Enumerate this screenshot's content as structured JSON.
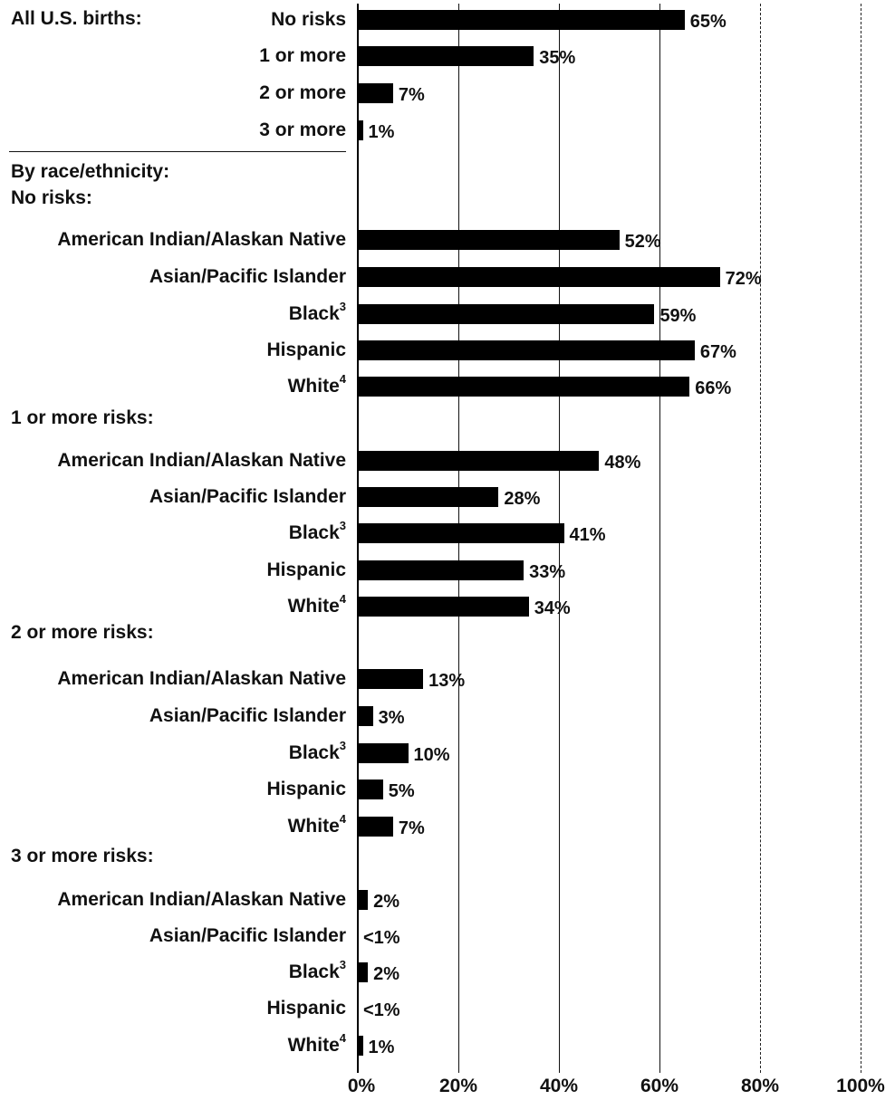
{
  "chart_data": {
    "type": "bar",
    "orientation": "horizontal",
    "xlim": [
      0,
      100
    ],
    "x_ticks": [
      "0%",
      "20%",
      "40%",
      "60%",
      "80%",
      "100%"
    ],
    "grid": true,
    "groups": [
      {
        "header": "All U.S. births:",
        "rows": [
          {
            "label": "No risks",
            "sup": "",
            "value": 65,
            "display": "65%"
          },
          {
            "label": "1 or more",
            "sup": "",
            "value": 35,
            "display": "35%"
          },
          {
            "label": "2 or more",
            "sup": "",
            "value": 7,
            "display": "7%"
          },
          {
            "label": "3 or more",
            "sup": "",
            "value": 1,
            "display": "1%"
          }
        ]
      },
      {
        "header": "By race/ethnicity:",
        "subheader": "No risks:",
        "rows": [
          {
            "label": "American Indian/Alaskan Native",
            "sup": "",
            "value": 52,
            "display": "52%"
          },
          {
            "label": "Asian/Pacific Islander",
            "sup": "",
            "value": 72,
            "display": "72%"
          },
          {
            "label": "Black",
            "sup": "3",
            "value": 59,
            "display": "59%"
          },
          {
            "label": "Hispanic",
            "sup": "",
            "value": 67,
            "display": "67%"
          },
          {
            "label": "White",
            "sup": "4",
            "value": 66,
            "display": "66%"
          }
        ]
      },
      {
        "header": "1 or more risks:",
        "rows": [
          {
            "label": "American Indian/Alaskan Native",
            "sup": "",
            "value": 48,
            "display": "48%"
          },
          {
            "label": "Asian/Pacific Islander",
            "sup": "",
            "value": 28,
            "display": "28%"
          },
          {
            "label": "Black",
            "sup": "3",
            "value": 41,
            "display": "41%"
          },
          {
            "label": "Hispanic",
            "sup": "",
            "value": 33,
            "display": "33%"
          },
          {
            "label": "White",
            "sup": "4",
            "value": 34,
            "display": "34%"
          }
        ]
      },
      {
        "header": "2 or more risks:",
        "rows": [
          {
            "label": "American Indian/Alaskan Native",
            "sup": "",
            "value": 13,
            "display": "13%"
          },
          {
            "label": "Asian/Pacific Islander",
            "sup": "",
            "value": 3,
            "display": "3%"
          },
          {
            "label": "Black",
            "sup": "3",
            "value": 10,
            "display": "10%"
          },
          {
            "label": "Hispanic",
            "sup": "",
            "value": 5,
            "display": "5%"
          },
          {
            "label": "White",
            "sup": "4",
            "value": 7,
            "display": "7%"
          }
        ]
      },
      {
        "header": "3 or more risks:",
        "rows": [
          {
            "label": "American Indian/Alaskan Native",
            "sup": "",
            "value": 2,
            "display": "2%"
          },
          {
            "label": "Asian/Pacific Islander",
            "sup": "",
            "value": 0,
            "display": "<1%"
          },
          {
            "label": "Black",
            "sup": "3",
            "value": 2,
            "display": "2%"
          },
          {
            "label": "Hispanic",
            "sup": "",
            "value": 0,
            "display": "<1%"
          },
          {
            "label": "White",
            "sup": "4",
            "value": 1,
            "display": "1%"
          }
        ]
      }
    ]
  }
}
